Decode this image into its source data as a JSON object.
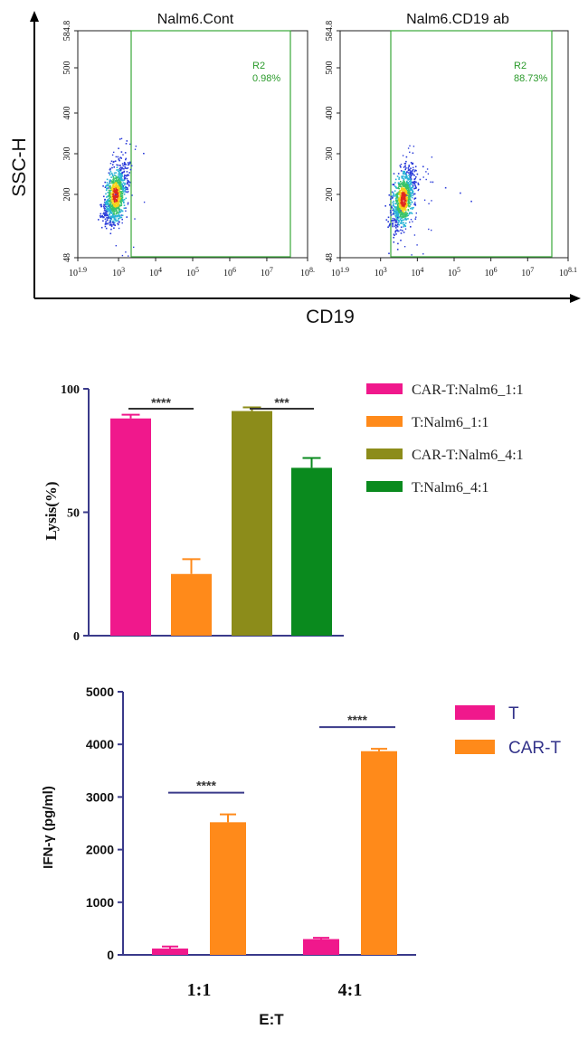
{
  "chart_data": [
    {
      "type": "scatter",
      "kind": "flow-cytometry",
      "xlabel": "CD19",
      "ylabel": "SSC-H",
      "x_scale": "log",
      "x_tick_labels": [
        "10^1.9",
        "10^3",
        "10^4",
        "10^5",
        "10^6",
        "10^7",
        "10^8.1"
      ],
      "y_tick_labels": [
        "48",
        "200",
        "300",
        "400",
        "500",
        "584.8"
      ],
      "panels": [
        {
          "title": "Nalm6.Cont",
          "gate_name": "R2",
          "gate_percent": "0.98%",
          "last_x_tick": "10^8.",
          "cloud_center": [
            2.9,
            200
          ],
          "extra_dots": []
        },
        {
          "title": "Nalm6.CD19 ab",
          "gate_name": "R2",
          "gate_percent": "88.73%",
          "last_x_tick": "10^8.1",
          "cloud_center": [
            3.6,
            190
          ],
          "extra_dots": [
            [
              4.75,
              218
            ],
            [
              5.45,
              185
            ],
            [
              5.15,
              205
            ],
            [
              4.4,
              232
            ]
          ]
        }
      ]
    },
    {
      "type": "bar",
      "ylabel": "Lysis(%)",
      "ylim": [
        0,
        100
      ],
      "y_ticks": [
        "0",
        "50",
        "100"
      ],
      "series": [
        {
          "name": "CAR-T:Nalm6_1:1",
          "value": 88,
          "error": 1.5,
          "color": "#f0188c"
        },
        {
          "name": "T:Nalm6_1:1",
          "value": 25,
          "error": 6,
          "color": "#ff8a1a"
        },
        {
          "name": "CAR-T:Nalm6_4:1",
          "value": 91,
          "error": 1.5,
          "color": "#8c8c1a"
        },
        {
          "name": "T:Nalm6_4:1",
          "value": 68,
          "error": 4,
          "color": "#0a8a1e"
        }
      ],
      "significance": [
        {
          "from": 0,
          "to": 1,
          "label": "****"
        },
        {
          "from": 2,
          "to": 3,
          "label": "***"
        }
      ],
      "legend": "right"
    },
    {
      "type": "bar",
      "xlabel": "E:T",
      "ylabel": "IFN-γ (pg/ml)",
      "ylim": [
        0,
        5000
      ],
      "y_ticks": [
        "0",
        "1000",
        "2000",
        "3000",
        "4000",
        "5000"
      ],
      "categories": [
        "1:1",
        "4:1"
      ],
      "series": [
        {
          "name": "T",
          "values": [
            120,
            300
          ],
          "errors": [
            40,
            25
          ],
          "color": "#f0188c"
        },
        {
          "name": "CAR-T",
          "values": [
            2520,
            3870
          ],
          "errors": [
            150,
            45
          ],
          "color": "#ff8a1a"
        }
      ],
      "significance": [
        {
          "category": 0,
          "label": "****"
        },
        {
          "category": 1,
          "label": "****"
        }
      ],
      "legend": "top-right"
    }
  ]
}
